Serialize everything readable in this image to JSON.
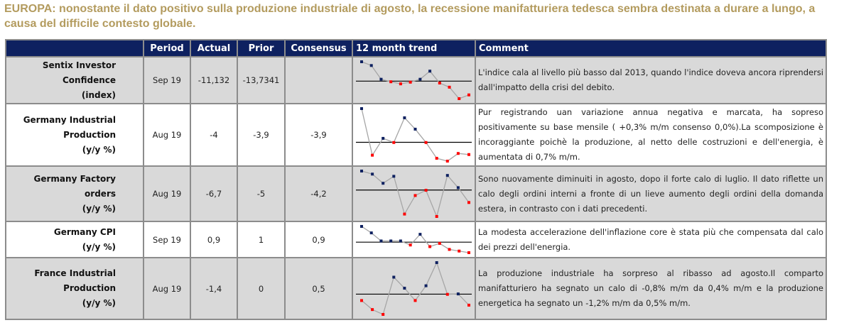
{
  "title": "EUROPA: nonostante il dato positivo sulla produzione industriale di agosto, la recessione manifatturiera tedesca sembra destinata a durare a lungo, a causa del difficile contesto globale.",
  "headers": [
    "",
    "Period",
    "Actual",
    "Prior",
    "Consensus",
    "12 month trend",
    "Comment"
  ],
  "colors": {
    "header_bg": "#0e2160",
    "positive": "#0e2160",
    "negative": "#ff0000",
    "title": "#b39b5e"
  },
  "rows": [
    {
      "label": [
        "Sentix Investor",
        "Confidence",
        "(index)"
      ],
      "period": "Sep 19",
      "actual": "-11,132",
      "prior": "-13,7341",
      "consensus": "",
      "comment": "L'indice cala al livello più basso dal 2013, quando l'indice doveva ancora riprendersi dall'impatto della crisi del debito.",
      "trend": [
        9.3,
        7.5,
        0.9,
        -0.3,
        -1.3,
        -0.5,
        0.9,
        4.8,
        -0.9,
        -2.9,
        -8.4,
        -6.6
      ]
    },
    {
      "label": [
        "Germany Industrial",
        "Production",
        "(y/y %)"
      ],
      "period": "Aug 19",
      "actual": "-4",
      "prior": "-3,9",
      "consensus": "-3,9",
      "comment": "Pur registrando uan variazione annua negativa e marcata, ha sopreso positivamente su base mensile ( +0,3% m/m consenso 0,0%).La scomposizione è incoraggiante poichè la produzione, al netto delle costruzioni e dell'energia, è aumentata di 0,7% m/m.",
      "trend": [
        15.4,
        -5.9,
        1.8,
        -0.1,
        11.2,
        6,
        -0.1,
        -7.3,
        -8.6,
        -5.1,
        -5.6
      ]
    },
    {
      "label": [
        "Germany Factory orders",
        "(y/y %)"
      ],
      "period": "Aug 19",
      "actual": "-6,7",
      "prior": "-5",
      "consensus": "-4,2",
      "comment": "Sono nuovamente diminuiti in agosto, dopo il forte calo di luglio. Il dato riflette un calo degli ordini interni a fronte di un lieve aumento degli ordini della domanda estera, in contrasto con i dati precedenti.",
      "trend": [
        8.7,
        7.3,
        3.1,
        6.3,
        -11,
        -2.5,
        -0.1,
        -12.1,
        6.7,
        1.1,
        -5.7
      ]
    },
    {
      "label": [
        "Germany CPI",
        "(y/y %)"
      ],
      "period": "Sep 19",
      "actual": "0,9",
      "prior": "1",
      "consensus": "0,9",
      "comment": "La modesta accelerazione dell'inflazione core è stata più che compensata dal calo dei prezzi dell'energia.",
      "trend": [
        7.8,
        4.6,
        0.6,
        0.6,
        0.6,
        -1.4,
        3.9,
        -2.2,
        -0.6,
        -3.6,
        -4.4,
        -5.2
      ]
    },
    {
      "label": [
        "France Industrial",
        "Production",
        "(y/y %)"
      ],
      "period": "Aug 19",
      "actual": "-1,4",
      "prior": "0",
      "consensus": "0,5",
      "comment": "La produzione industriale ha sorpreso al ribasso ad agosto.Il comparto manifatturiero ha segnato un calo di -0,8% m/m da 0,4% m/m e la produzione energetica ha segnato un -1,2% m/m da 0,5% m/m.",
      "trend": [
        -2.9,
        -7,
        -9.2,
        7.7,
        2.7,
        -2.9,
        3.8,
        14.3,
        -0.1,
        0.1,
        -5
      ]
    }
  ]
}
